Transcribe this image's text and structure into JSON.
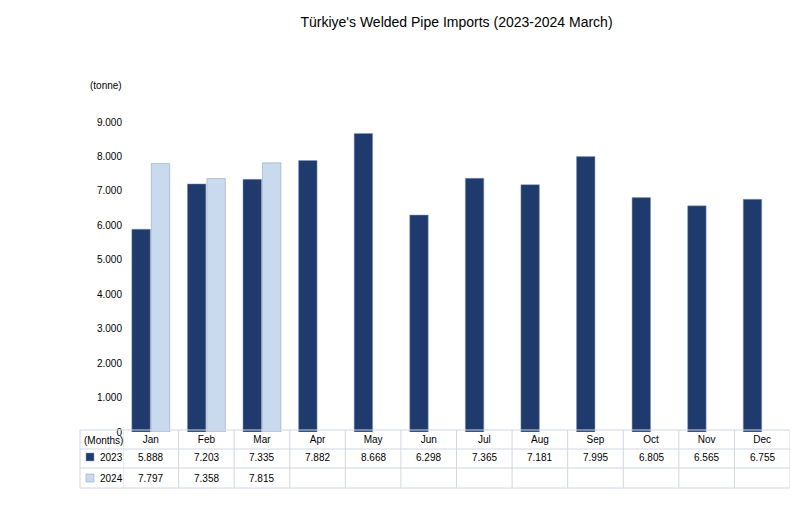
{
  "chart_data": {
    "type": "bar",
    "title": "Türkiye's Welded Pipe Imports (2023-2024 March)",
    "y_label": "(tonne)",
    "x_label": "(Months)",
    "categories": [
      "Jan",
      "Feb",
      "Mar",
      "Apr",
      "May",
      "Jun",
      "Jul",
      "Aug",
      "Sep",
      "Oct",
      "Nov",
      "Dec"
    ],
    "series": [
      {
        "name": "2023",
        "color": "#1f3b6e",
        "values": [
          5888,
          7203,
          7335,
          7882,
          8668,
          6298,
          7365,
          7181,
          7995,
          6805,
          6565,
          6755
        ],
        "value_labels": [
          "5.888",
          "7.203",
          "7.335",
          "7.882",
          "8.668",
          "6.298",
          "7.365",
          "7.181",
          "7.995",
          "6.805",
          "6.565",
          "6.755"
        ]
      },
      {
        "name": "2024",
        "color": "#c9d9ee",
        "values": [
          7797,
          7358,
          7815,
          null,
          null,
          null,
          null,
          null,
          null,
          null,
          null,
          null
        ],
        "value_labels": [
          "7.797",
          "7.358",
          "7.815",
          null,
          null,
          null,
          null,
          null,
          null,
          null,
          null,
          null
        ]
      }
    ],
    "ylim": [
      0,
      9000
    ],
    "yticks": [
      0,
      {
        "value": 1000,
        "label": "1.000"
      },
      {
        "value": 2000,
        "label": "2.000"
      },
      {
        "value": 3000,
        "label": "3.000"
      },
      {
        "value": 4000,
        "label": "4.000"
      },
      {
        "value": 5000,
        "label": "5.000"
      },
      {
        "value": 6000,
        "label": "6.000"
      },
      {
        "value": 7000,
        "label": "7.000"
      },
      {
        "value": 8000,
        "label": "8.000"
      },
      {
        "value": 9000,
        "label": "9.000"
      }
    ],
    "grid": false,
    "legend": "bottom"
  }
}
